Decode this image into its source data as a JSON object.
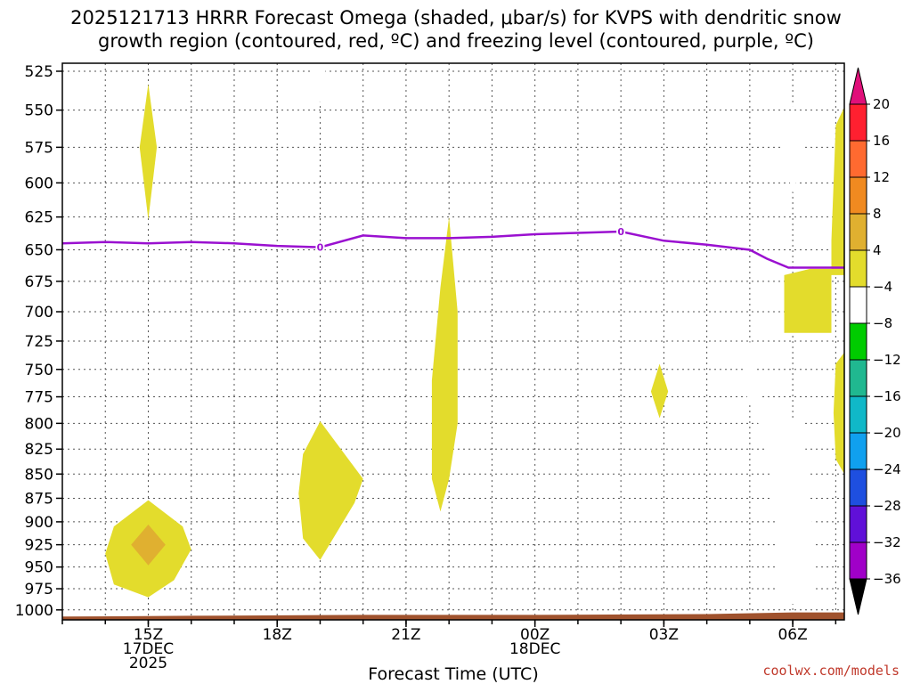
{
  "chart_data": {
    "type": "time-height contour",
    "title_line1": "2025121713 HRRR Forecast Omega (shaded, μbar/s) for KVPS with dendritic snow",
    "title_line2": "growth region (contoured, red, ºC) and freezing level (contoured, purple, ºC)",
    "xlabel": "Forecast Time (UTC)",
    "credit": "coolwx.com/models",
    "x_range_hours": [
      13.0,
      31.2
    ],
    "y_range_mb": [
      520,
      1012
    ],
    "y_ticks": [
      525,
      550,
      575,
      600,
      625,
      650,
      675,
      700,
      725,
      750,
      775,
      800,
      825,
      850,
      875,
      900,
      925,
      950,
      975,
      1000
    ],
    "x_ticks": [
      {
        "hour": 15,
        "lines": [
          "15Z",
          "17DEC",
          "2025"
        ]
      },
      {
        "hour": 18,
        "lines": [
          "18Z"
        ]
      },
      {
        "hour": 21,
        "lines": [
          "21Z"
        ]
      },
      {
        "hour": 24,
        "lines": [
          "00Z",
          "18DEC"
        ]
      },
      {
        "hour": 27,
        "lines": [
          "03Z"
        ]
      },
      {
        "hour": 30,
        "lines": [
          "06Z"
        ]
      }
    ],
    "freezing_level": {
      "label": "0",
      "label_points": [
        [
          19.0,
          648
        ],
        [
          26.0,
          636
        ]
      ],
      "points": [
        [
          13.0,
          645
        ],
        [
          14.0,
          644
        ],
        [
          15.0,
          645
        ],
        [
          16.0,
          644
        ],
        [
          17.0,
          645
        ],
        [
          18.0,
          647
        ],
        [
          19.0,
          648
        ],
        [
          20.0,
          639
        ],
        [
          21.0,
          641
        ],
        [
          22.0,
          641
        ],
        [
          23.0,
          640
        ],
        [
          24.0,
          638
        ],
        [
          25.0,
          637
        ],
        [
          26.0,
          636
        ],
        [
          27.0,
          643
        ],
        [
          28.0,
          646
        ],
        [
          29.0,
          650
        ],
        [
          29.4,
          657
        ],
        [
          29.9,
          664
        ],
        [
          30.5,
          664
        ],
        [
          31.2,
          664
        ]
      ]
    },
    "omega_regions": [
      {
        "name": "yellow-15z-upper",
        "value_range": [
          4,
          8
        ],
        "points": [
          [
            15.0,
            533
          ],
          [
            15.2,
            575
          ],
          [
            15.0,
            627
          ],
          [
            14.8,
            575
          ]
        ]
      },
      {
        "name": "green-19z-top",
        "value_range": [
          -8,
          -4
        ],
        "points": [
          [
            18.8,
            520
          ],
          [
            19.15,
            520
          ],
          [
            19.0,
            546
          ]
        ]
      },
      {
        "name": "yellow-15z-low",
        "value_range": [
          4,
          8
        ],
        "points": [
          [
            15.0,
            877
          ],
          [
            15.8,
            905
          ],
          [
            16.0,
            930
          ],
          [
            15.6,
            965
          ],
          [
            15.0,
            985
          ],
          [
            14.2,
            970
          ],
          [
            14.0,
            935
          ],
          [
            14.2,
            905
          ]
        ]
      },
      {
        "name": "orange-15z",
        "value_range": [
          8,
          12
        ],
        "points": [
          [
            15.0,
            903
          ],
          [
            15.4,
            925
          ],
          [
            15.0,
            948
          ],
          [
            14.6,
            925
          ]
        ]
      },
      {
        "name": "yellow-19z",
        "value_range": [
          4,
          8
        ],
        "points": [
          [
            19.0,
            798
          ],
          [
            20.0,
            855
          ],
          [
            19.8,
            880
          ],
          [
            19.0,
            942
          ],
          [
            18.6,
            918
          ],
          [
            18.5,
            870
          ],
          [
            18.6,
            830
          ]
        ]
      },
      {
        "name": "yellow-22z",
        "value_range": [
          4,
          8
        ],
        "points": [
          [
            22.0,
            625
          ],
          [
            22.2,
            700
          ],
          [
            22.2,
            800
          ],
          [
            22.0,
            855
          ],
          [
            21.8,
            889
          ],
          [
            21.6,
            855
          ],
          [
            21.6,
            760
          ],
          [
            21.8,
            680
          ]
        ]
      },
      {
        "name": "yellow-03z",
        "value_range": [
          4,
          8
        ],
        "points": [
          [
            26.9,
            745
          ],
          [
            27.1,
            770
          ],
          [
            26.9,
            795
          ],
          [
            26.7,
            770
          ]
        ]
      },
      {
        "name": "green-06z-upper",
        "value_range": [
          -8,
          -4
        ],
        "points": [
          [
            30.0,
            546
          ],
          [
            30.3,
            580
          ],
          [
            30.0,
            607
          ],
          [
            29.75,
            580
          ]
        ]
      },
      {
        "name": "green-06z-lower",
        "value_range": [
          -8,
          -4
        ],
        "points": [
          [
            29.0,
            725
          ],
          [
            29.3,
            778
          ],
          [
            29.7,
            790
          ],
          [
            30.25,
            800
          ],
          [
            30.35,
            860
          ],
          [
            30.55,
            940
          ],
          [
            30.5,
            985
          ],
          [
            30.0,
            993
          ],
          [
            29.6,
            982
          ],
          [
            29.6,
            900
          ],
          [
            29.4,
            820
          ],
          [
            28.8,
            762
          ]
        ]
      },
      {
        "name": "yellow-06z-mid",
        "value_range": [
          4,
          8
        ],
        "points": [
          [
            29.8,
            670
          ],
          [
            30.4,
            665
          ],
          [
            30.9,
            665
          ],
          [
            30.9,
            718
          ],
          [
            29.8,
            718
          ]
        ]
      },
      {
        "name": "yellow-right-upper",
        "value_range": [
          4,
          8
        ],
        "points": [
          [
            31.0,
            560
          ],
          [
            31.2,
            548
          ],
          [
            31.2,
            670
          ],
          [
            30.9,
            670
          ],
          [
            30.9,
            643
          ]
        ]
      },
      {
        "name": "yellow-right-lower",
        "value_range": [
          4,
          8
        ],
        "points": [
          [
            31.0,
            745
          ],
          [
            31.2,
            735
          ],
          [
            31.2,
            850
          ],
          [
            31.0,
            835
          ],
          [
            30.95,
            790
          ]
        ]
      }
    ],
    "terrain": {
      "points": [
        [
          13.0,
          1008
        ],
        [
          16.0,
          1007
        ],
        [
          20.0,
          1006
        ],
        [
          24.0,
          1006
        ],
        [
          28.0,
          1005
        ],
        [
          30.0,
          1003
        ],
        [
          31.2,
          1003
        ]
      ]
    },
    "colorbar": {
      "labels": [
        "20",
        "16",
        "12",
        "8",
        "4",
        "−4",
        "−8",
        "−12",
        "−16",
        "−20",
        "−24",
        "−28",
        "−32",
        "−36"
      ],
      "colors": [
        "#ff2030",
        "#ff6a30",
        "#f08a20",
        "#e0b030",
        "#e3dc2c",
        "#ffffff",
        "#00cc00",
        "#20b890",
        "#10b8c8",
        "#10a0ef",
        "#1e4fe0",
        "#6010d8",
        "#a000c8",
        "#a8a8a8"
      ],
      "top_color": "#e0107a",
      "bottom_color": "#000000"
    }
  }
}
